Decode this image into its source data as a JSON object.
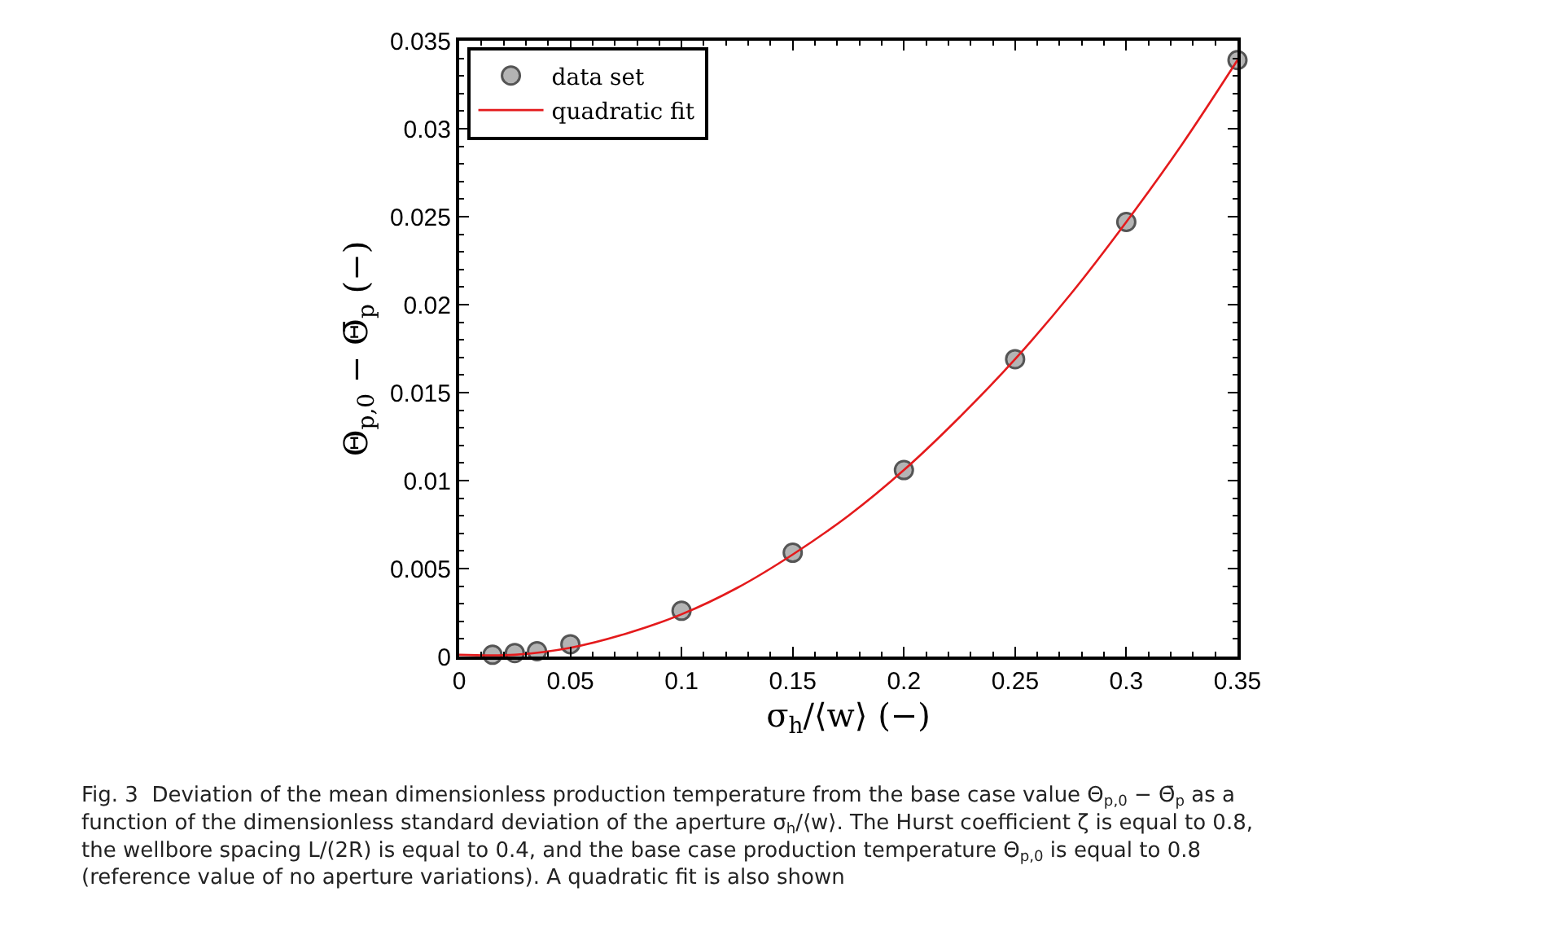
{
  "chart_data": {
    "type": "scatter",
    "xlabel": "σ$_{h}$/⟨w⟩ (−)",
    "ylabel": "Θ$_{p,0}$ − Θ̄$_{p}$ (−)",
    "series": [
      {
        "name": "data set",
        "color": "#b4b4b4",
        "marker": "circle",
        "x": [
          0.015,
          0.025,
          0.035,
          0.05,
          0.1,
          0.15,
          0.2,
          0.25,
          0.3,
          0.35
        ],
        "values": [
          0.0001,
          0.0002,
          0.0003,
          0.0007,
          0.0026,
          0.0059,
          0.0106,
          0.0169,
          0.0247,
          0.0339
        ]
      },
      {
        "name": "quadratic fit",
        "type": "line",
        "color": "#e41a1c",
        "line_style": "solid",
        "x": [
          0,
          0.025,
          0.05,
          0.075,
          0.1,
          0.125,
          0.15,
          0.175,
          0.2,
          0.225,
          0.25,
          0.275,
          0.3,
          0.325,
          0.35
        ],
        "values": [
          0.0001,
          0.0001,
          0.0005,
          0.0013,
          0.0024,
          0.0039,
          0.0058,
          0.008,
          0.0106,
          0.0136,
          0.0169,
          0.0206,
          0.0247,
          0.0291,
          0.0339
        ]
      }
    ],
    "xlim": [
      0,
      0.35
    ],
    "xticks": [
      0,
      0.05,
      0.1,
      0.15,
      0.2,
      0.25,
      0.3,
      0.35
    ],
    "ylim": [
      0,
      0.035
    ],
    "yticks": [
      0,
      0.005,
      0.01,
      0.015,
      0.02,
      0.025,
      0.03,
      0.035
    ],
    "legend": "top left",
    "annotations": [
      "Fig. 3  Deviation of the mean dimensionless production temperature from the base case value Θ$_{p,0}$ − Θ̄$_{p}$ as a function of the dimensionless standard deviation of the aperture σ$_{h}$/⟨w⟩. The Hurst coefficient ζ is equal to 0.8, the wellbore spacing L/(2R) is equal to 0.4, and the base case production temperature Θ$_{p,0}$ is equal to 0.8 (reference value of no aperture variations). A quadratic fit is also shown"
    ]
  }
}
